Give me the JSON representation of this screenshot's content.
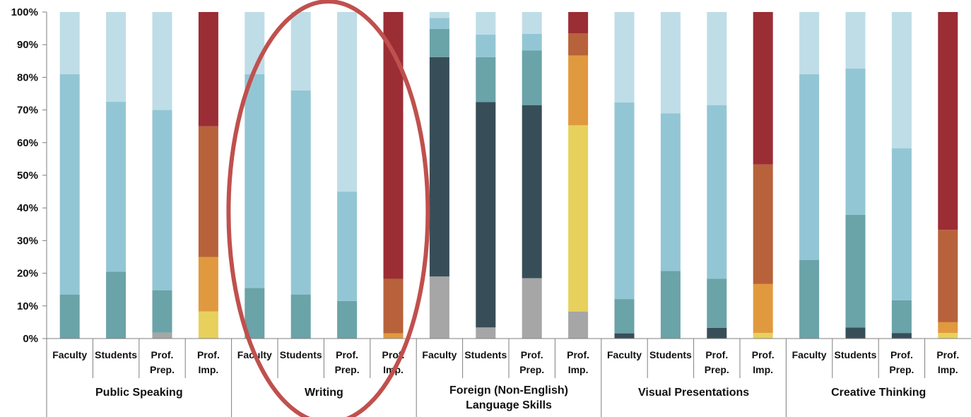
{
  "chart_data": {
    "type": "bar",
    "stacked": true,
    "normalized": true,
    "title": "",
    "xlabel": "",
    "ylabel": "",
    "ylim": [
      0,
      100
    ],
    "y_ticks": [
      "0%",
      "10%",
      "20%",
      "30%",
      "40%",
      "50%",
      "60%",
      "70%",
      "80%",
      "90%",
      "100%"
    ],
    "grid": false,
    "legend": "none",
    "groups": [
      {
        "label": "Public Speaking",
        "bars": [
          {
            "label": "Faculty",
            "segments": [
              {
                "value": 13.5,
                "color": "#6aa3a8"
              },
              {
                "value": 67.5,
                "color": "#93c6d4"
              },
              {
                "value": 19.0,
                "color": "#bfdde7"
              }
            ]
          },
          {
            "label": "Students",
            "segments": [
              {
                "value": 20.5,
                "color": "#6aa3a8"
              },
              {
                "value": 52.0,
                "color": "#93c6d4"
              },
              {
                "value": 27.5,
                "color": "#bfdde7"
              }
            ]
          },
          {
            "label": "Prof. Prep.",
            "segments": [
              {
                "value": 1.8,
                "color": "#a6a6a6"
              },
              {
                "value": 13.0,
                "color": "#6aa3a8"
              },
              {
                "value": 55.2,
                "color": "#93c6d4"
              },
              {
                "value": 30.0,
                "color": "#bfdde7"
              }
            ]
          },
          {
            "label": "Prof. Imp.",
            "segments": [
              {
                "value": 8.3,
                "color": "#e7d15c"
              },
              {
                "value": 16.7,
                "color": "#e1993f"
              },
              {
                "value": 40.0,
                "color": "#b8623b"
              },
              {
                "value": 35.0,
                "color": "#9b2d35"
              }
            ]
          }
        ]
      },
      {
        "label": "Writing",
        "highlighted": true,
        "bars": [
          {
            "label": "Faculty",
            "segments": [
              {
                "value": 15.5,
                "color": "#6aa3a8"
              },
              {
                "value": 65.5,
                "color": "#93c6d4"
              },
              {
                "value": 19.0,
                "color": "#bfdde7"
              }
            ]
          },
          {
            "label": "Students",
            "segments": [
              {
                "value": 13.5,
                "color": "#6aa3a8"
              },
              {
                "value": 62.5,
                "color": "#93c6d4"
              },
              {
                "value": 24.0,
                "color": "#bfdde7"
              }
            ]
          },
          {
            "label": "Prof. Prep.",
            "segments": [
              {
                "value": 11.5,
                "color": "#6aa3a8"
              },
              {
                "value": 33.5,
                "color": "#93c6d4"
              },
              {
                "value": 55.0,
                "color": "#bfdde7"
              }
            ]
          },
          {
            "label": "Prof. Imp.",
            "segments": [
              {
                "value": 1.6,
                "color": "#e1993f"
              },
              {
                "value": 16.7,
                "color": "#b8623b"
              },
              {
                "value": 81.7,
                "color": "#9b2d35"
              }
            ]
          }
        ]
      },
      {
        "label": "Foreign (Non-English) Language Skills",
        "label_lines": [
          "Foreign (Non-English)",
          "Language Skills"
        ],
        "bars": [
          {
            "label": "Faculty",
            "segments": [
              {
                "value": 19.0,
                "color": "#a6a6a6"
              },
              {
                "value": 67.2,
                "color": "#374e58"
              },
              {
                "value": 8.6,
                "color": "#6aa3a8"
              },
              {
                "value": 3.4,
                "color": "#93c6d4"
              },
              {
                "value": 1.8,
                "color": "#bfdde7"
              }
            ]
          },
          {
            "label": "Students",
            "segments": [
              {
                "value": 3.4,
                "color": "#a6a6a6"
              },
              {
                "value": 69.0,
                "color": "#374e58"
              },
              {
                "value": 13.8,
                "color": "#6aa3a8"
              },
              {
                "value": 6.9,
                "color": "#93c6d4"
              },
              {
                "value": 6.9,
                "color": "#bfdde7"
              }
            ]
          },
          {
            "label": "Prof. Prep.",
            "segments": [
              {
                "value": 18.5,
                "color": "#a6a6a6"
              },
              {
                "value": 53.0,
                "color": "#374e58"
              },
              {
                "value": 16.7,
                "color": "#6aa3a8"
              },
              {
                "value": 5.1,
                "color": "#93c6d4"
              },
              {
                "value": 6.7,
                "color": "#bfdde7"
              }
            ]
          },
          {
            "label": "Prof. Imp.",
            "segments": [
              {
                "value": 8.3,
                "color": "#a6a6a6"
              },
              {
                "value": 57.0,
                "color": "#e7d15c"
              },
              {
                "value": 21.4,
                "color": "#e1993f"
              },
              {
                "value": 6.8,
                "color": "#b8623b"
              },
              {
                "value": 6.5,
                "color": "#9b2d35"
              }
            ]
          }
        ]
      },
      {
        "label": "Visual Presentations",
        "bars": [
          {
            "label": "Faculty",
            "segments": [
              {
                "value": 1.6,
                "color": "#374e58"
              },
              {
                "value": 10.5,
                "color": "#6aa3a8"
              },
              {
                "value": 60.2,
                "color": "#93c6d4"
              },
              {
                "value": 27.7,
                "color": "#bfdde7"
              }
            ]
          },
          {
            "label": "Students",
            "segments": [
              {
                "value": 20.7,
                "color": "#6aa3a8"
              },
              {
                "value": 48.3,
                "color": "#93c6d4"
              },
              {
                "value": 31.0,
                "color": "#bfdde7"
              }
            ]
          },
          {
            "label": "Prof. Prep.",
            "segments": [
              {
                "value": 3.3,
                "color": "#374e58"
              },
              {
                "value": 15.0,
                "color": "#6aa3a8"
              },
              {
                "value": 53.2,
                "color": "#93c6d4"
              },
              {
                "value": 28.5,
                "color": "#bfdde7"
              }
            ]
          },
          {
            "label": "Prof. Imp.",
            "segments": [
              {
                "value": 1.7,
                "color": "#e7d15c"
              },
              {
                "value": 15.0,
                "color": "#e1993f"
              },
              {
                "value": 36.6,
                "color": "#b8623b"
              },
              {
                "value": 46.7,
                "color": "#9b2d35"
              }
            ]
          }
        ]
      },
      {
        "label": "Creative Thinking",
        "bars": [
          {
            "label": "Faculty",
            "segments": [
              {
                "value": 24.1,
                "color": "#6aa3a8"
              },
              {
                "value": 56.9,
                "color": "#93c6d4"
              },
              {
                "value": 19.0,
                "color": "#bfdde7"
              }
            ]
          },
          {
            "label": "Students",
            "segments": [
              {
                "value": 3.4,
                "color": "#374e58"
              },
              {
                "value": 34.5,
                "color": "#6aa3a8"
              },
              {
                "value": 44.8,
                "color": "#93c6d4"
              },
              {
                "value": 17.3,
                "color": "#bfdde7"
              }
            ]
          },
          {
            "label": "Prof. Prep.",
            "segments": [
              {
                "value": 1.7,
                "color": "#374e58"
              },
              {
                "value": 10.0,
                "color": "#6aa3a8"
              },
              {
                "value": 46.6,
                "color": "#93c6d4"
              },
              {
                "value": 41.7,
                "color": "#bfdde7"
              }
            ]
          },
          {
            "label": "Prof. Imp.",
            "segments": [
              {
                "value": 1.7,
                "color": "#e7d15c"
              },
              {
                "value": 3.3,
                "color": "#e1993f"
              },
              {
                "value": 28.3,
                "color": "#b8623b"
              },
              {
                "value": 66.7,
                "color": "#9b2d35"
              }
            ]
          }
        ]
      }
    ],
    "annotation": {
      "shape": "ellipse",
      "color": "#c0504d",
      "target_group": "Writing"
    }
  }
}
